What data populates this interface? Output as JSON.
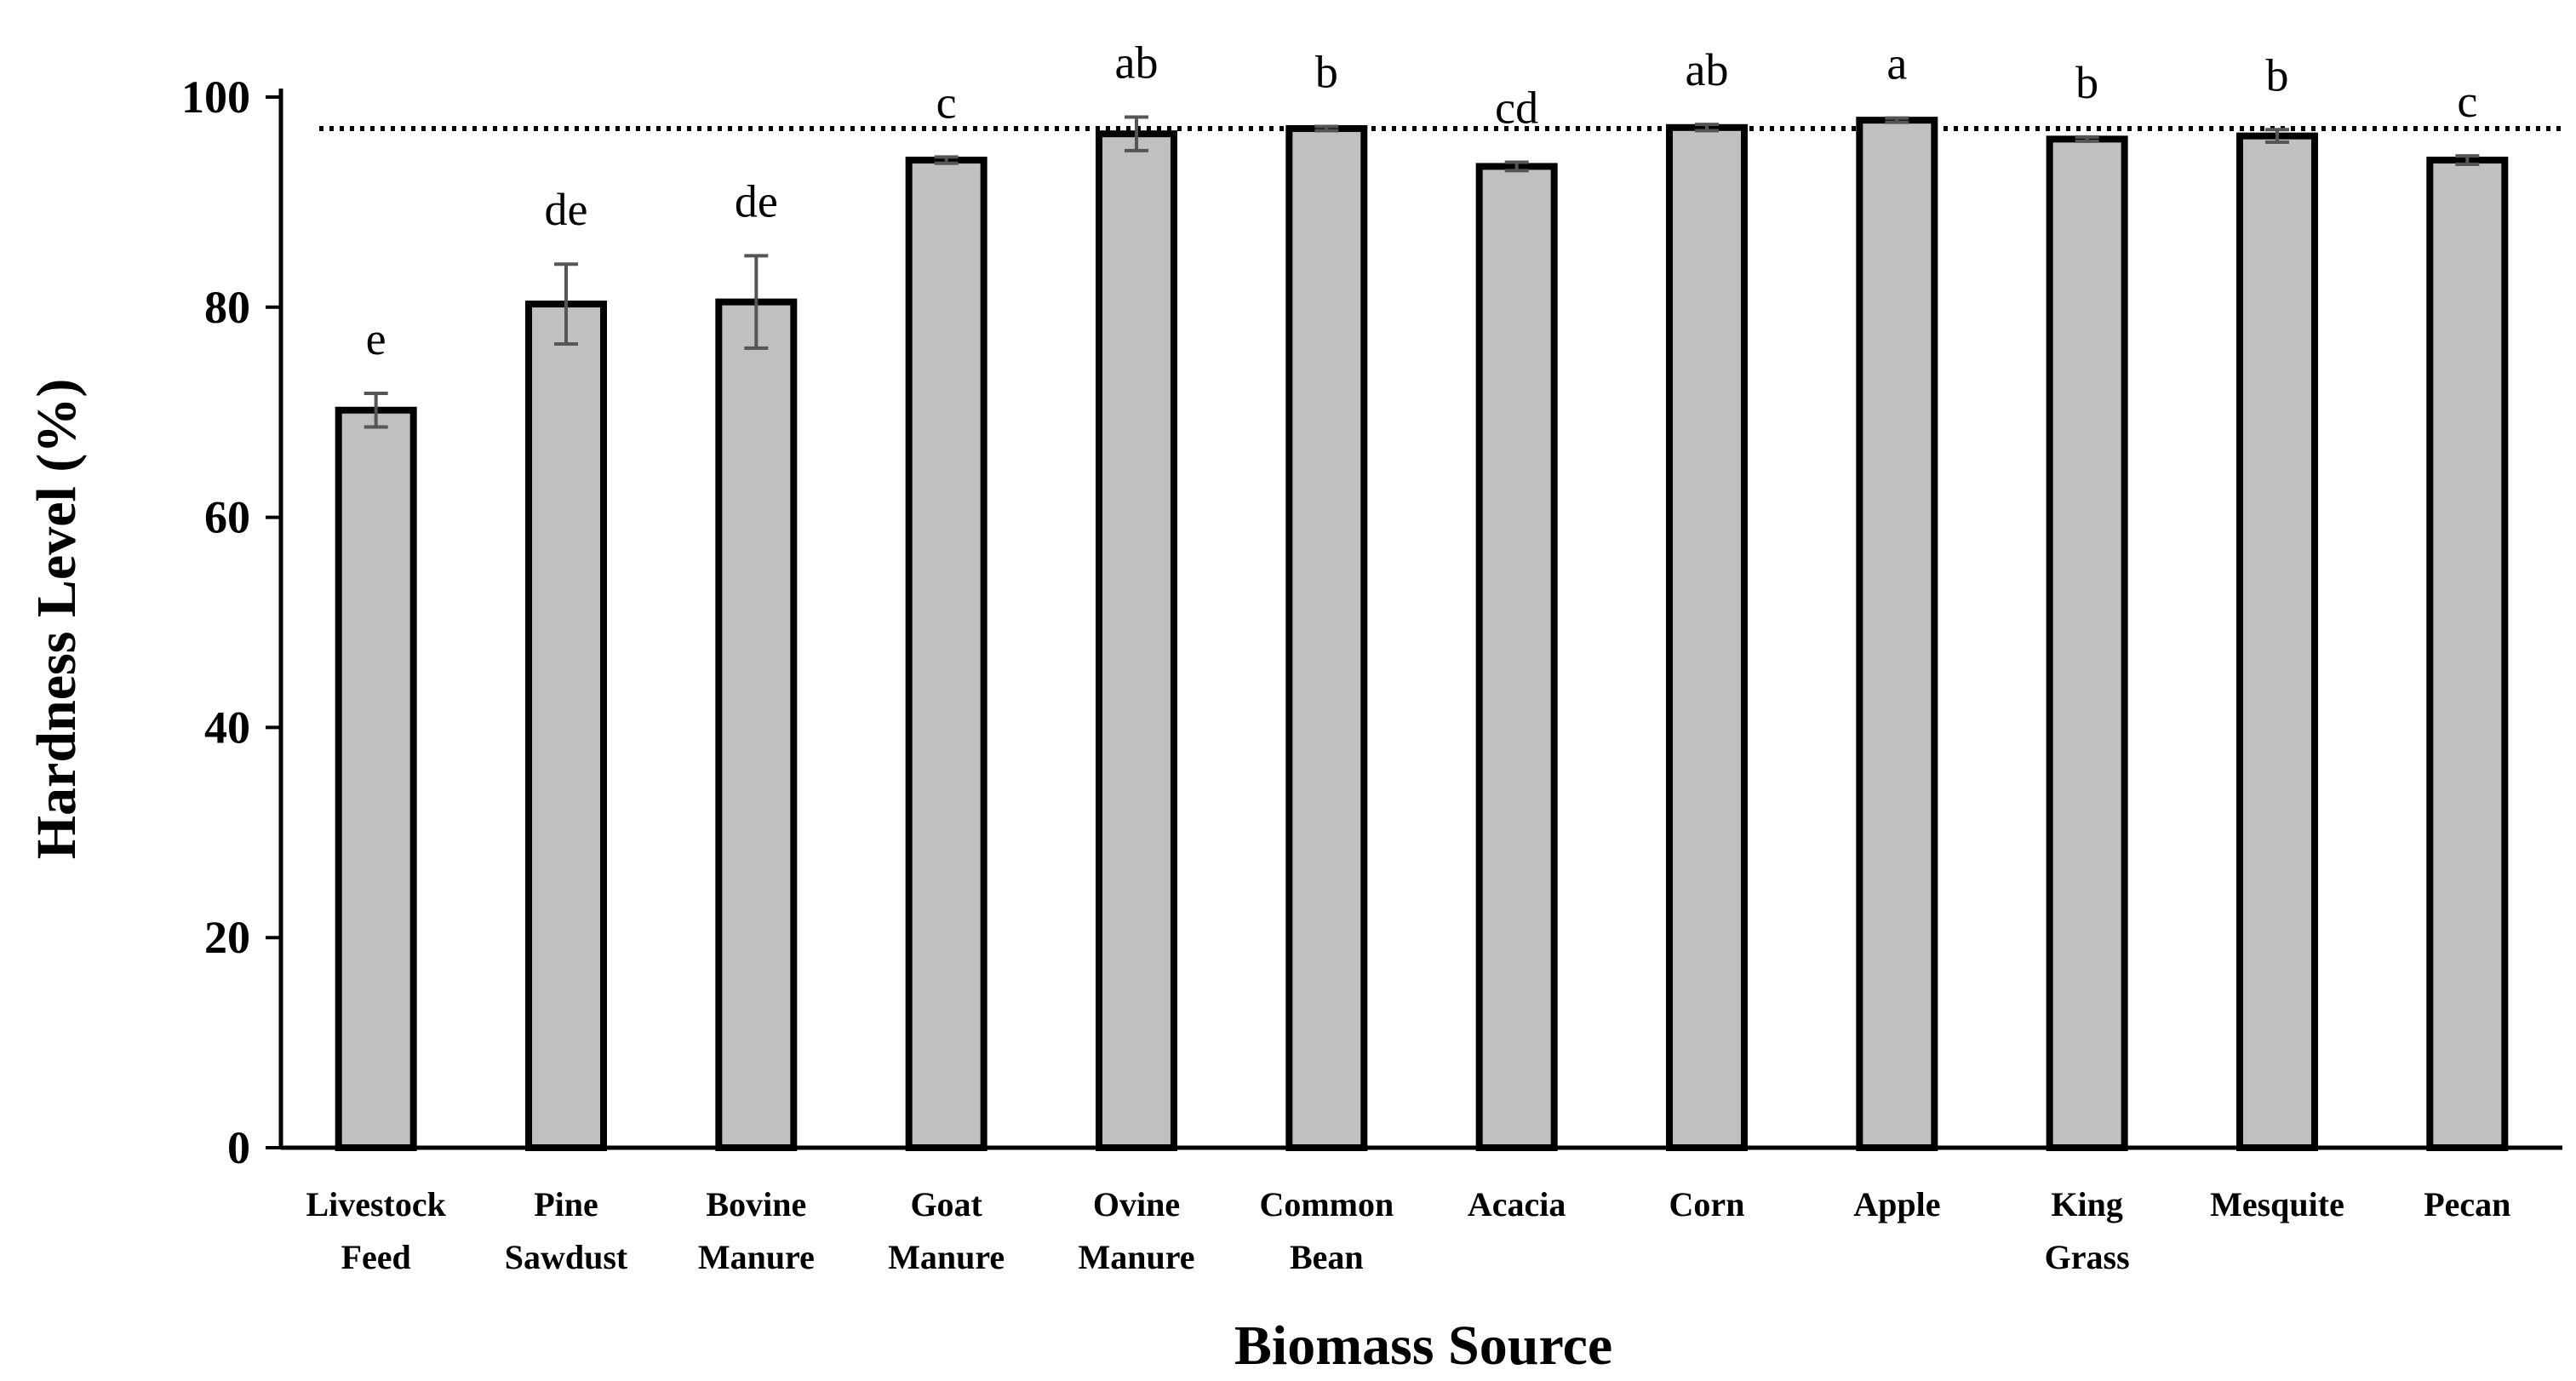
{
  "chart_data": {
    "type": "bar",
    "xlabel": "Biomass Source",
    "ylabel": "Hardness Level (%)",
    "ylim": [
      0,
      100
    ],
    "yticks": [
      0,
      20,
      40,
      60,
      80,
      100
    ],
    "grid": false,
    "reference_line": {
      "value": 97,
      "style": "dotted"
    },
    "categories": [
      [
        "Livestock",
        "Feed"
      ],
      [
        "Pine",
        "Sawdust"
      ],
      [
        "Bovine",
        "Manure"
      ],
      [
        "Goat",
        "Manure"
      ],
      [
        "Ovine",
        "Manure"
      ],
      [
        "Common",
        "Bean"
      ],
      [
        "Acacia"
      ],
      [
        "Corn"
      ],
      [
        "Apple"
      ],
      [
        "King",
        "Grass"
      ],
      [
        "Mesquite"
      ],
      [
        "Pecan"
      ]
    ],
    "values": [
      70.2,
      80.3,
      80.5,
      94.0,
      96.5,
      97.0,
      93.4,
      97.1,
      97.8,
      96.0,
      96.3,
      94.0
    ],
    "errors": [
      1.6,
      3.8,
      4.4,
      0.3,
      1.6,
      0.2,
      0.4,
      0.3,
      0.2,
      0.2,
      0.6,
      0.4
    ],
    "significance_letters": [
      "e",
      "de",
      "de",
      "c",
      "ab",
      "b",
      "cd",
      "ab",
      "a",
      "b",
      "b",
      "c"
    ],
    "colors": {
      "bar_fill": "#c0c0c0",
      "bar_stroke": "#000000",
      "error_bar": "#555555"
    }
  }
}
